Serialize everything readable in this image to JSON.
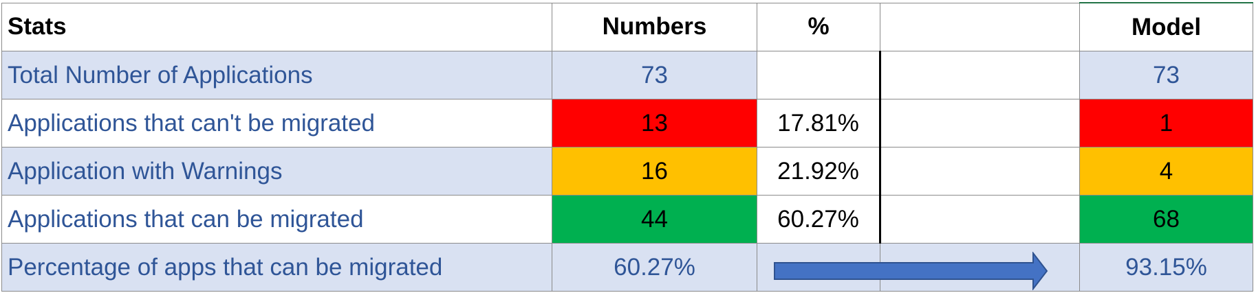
{
  "table": {
    "headers": {
      "stats": "Stats",
      "numbers": "Numbers",
      "percent": "%",
      "blank": "",
      "model": "Model"
    },
    "rows": [
      {
        "label": "Total Number of Applications",
        "number": "73",
        "percent": "",
        "model": "73"
      },
      {
        "label": "Applications that can't be migrated",
        "number": "13",
        "percent": "17.81%",
        "model": "1"
      },
      {
        "label": "Application with Warnings",
        "number": "16",
        "percent": "21.92%",
        "model": "4"
      },
      {
        "label": "Applications that can be migrated",
        "number": "44",
        "percent": "60.27%",
        "model": "68"
      }
    ],
    "summary": {
      "label": "Percentage of apps that can be migrated",
      "number": "60.27%",
      "model": "93.15%"
    }
  },
  "colors": {
    "label_text": "#2f5597",
    "light_blue_fill": "#d9e1f2",
    "red_fill": "#ff0000",
    "amber_fill": "#ffc000",
    "green_fill": "#00b050",
    "arrow_fill": "#4472c4",
    "arrow_stroke": "#2f528f"
  },
  "icons": {
    "arrow": "right-arrow-icon"
  }
}
